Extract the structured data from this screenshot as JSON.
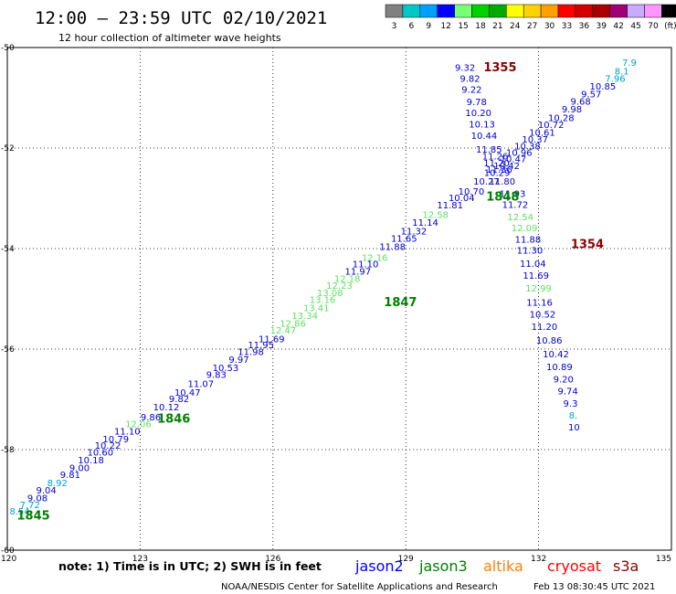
{
  "header": {
    "title": "12:00 – 23:59 UTC 02/10/2021",
    "subtitle": "12 hour collection of altimeter wave heights"
  },
  "colorbar": {
    "bins": [
      {
        "color": "#808080",
        "label": "3"
      },
      {
        "color": "#00c8c8",
        "label": "6"
      },
      {
        "color": "#00a0ff",
        "label": "9"
      },
      {
        "color": "#0000ff",
        "label": "12"
      },
      {
        "color": "#78ff78",
        "label": "15"
      },
      {
        "color": "#00d200",
        "label": "18"
      },
      {
        "color": "#00aa00",
        "label": "21"
      },
      {
        "color": "#ffff00",
        "label": "24"
      },
      {
        "color": "#ffd200",
        "label": "27"
      },
      {
        "color": "#ffa000",
        "label": "30"
      },
      {
        "color": "#ff0000",
        "label": "33"
      },
      {
        "color": "#d20000",
        "label": "36"
      },
      {
        "color": "#aa0000",
        "label": "39"
      },
      {
        "color": "#a00078",
        "label": "42"
      },
      {
        "color": "#c8aaff",
        "label": "45"
      },
      {
        "color": "#ff96ff",
        "label": "70"
      },
      {
        "color": "#000000",
        "label": "(ft)"
      }
    ]
  },
  "chart_data": {
    "type": "scatter",
    "title": "12:00 – 23:59 UTC 02/10/2021",
    "subtitle": "12 hour collection of altimeter wave heights",
    "xlim": [
      120,
      135
    ],
    "ylim": [
      -60,
      -50
    ],
    "x_ticks": [
      {
        "v": 120,
        "label": "120"
      },
      {
        "v": 123,
        "label": "123"
      },
      {
        "v": 126,
        "label": "126"
      },
      {
        "v": 129,
        "label": "129"
      },
      {
        "v": 132,
        "label": "132"
      },
      {
        "v": 135,
        "label": "135"
      }
    ],
    "y_ticks": [
      {
        "v": -50,
        "label": "-50"
      },
      {
        "v": -52,
        "label": "-52"
      },
      {
        "v": -54,
        "label": "-54"
      },
      {
        "v": -56,
        "label": "-56"
      },
      {
        "v": -58,
        "label": "-58"
      },
      {
        "v": -60,
        "label": "-60"
      }
    ],
    "grid": true,
    "value_colors": {
      "lt9": "#00a0d0",
      "lt12": "#0000cc",
      "lt15": "#60e060"
    },
    "points": [
      {
        "lon": 120.28,
        "lat": -59.23,
        "swh": "8.54"
      },
      {
        "lon": 120.51,
        "lat": -59.1,
        "swh": "7.72"
      },
      {
        "lon": 120.68,
        "lat": -58.96,
        "swh": "9.08"
      },
      {
        "lon": 120.88,
        "lat": -58.81,
        "swh": "9.04"
      },
      {
        "lon": 121.13,
        "lat": -58.66,
        "swh": "8.92"
      },
      {
        "lon": 121.42,
        "lat": -58.5,
        "swh": "9.81"
      },
      {
        "lon": 121.63,
        "lat": -58.36,
        "swh": "9.00"
      },
      {
        "lon": 121.89,
        "lat": -58.21,
        "swh": "10.18"
      },
      {
        "lon": 122.1,
        "lat": -58.05,
        "swh": "10.60"
      },
      {
        "lon": 122.27,
        "lat": -57.92,
        "swh": "10.22"
      },
      {
        "lon": 122.45,
        "lat": -57.79,
        "swh": "10.79"
      },
      {
        "lon": 122.71,
        "lat": -57.64,
        "swh": "11.10"
      },
      {
        "lon": 122.96,
        "lat": -57.49,
        "swh": "12.06"
      },
      {
        "lon": 123.24,
        "lat": -57.35,
        "swh": "9.86"
      },
      {
        "lon": 123.59,
        "lat": -57.15,
        "swh": "10.12"
      },
      {
        "lon": 123.88,
        "lat": -56.99,
        "swh": "9.82"
      },
      {
        "lon": 124.07,
        "lat": -56.86,
        "swh": "10.47"
      },
      {
        "lon": 124.37,
        "lat": -56.69,
        "swh": "11.07"
      },
      {
        "lon": 124.72,
        "lat": -56.51,
        "swh": "9.83"
      },
      {
        "lon": 124.93,
        "lat": -56.37,
        "swh": "10.53"
      },
      {
        "lon": 125.23,
        "lat": -56.21,
        "swh": "9.97"
      },
      {
        "lon": 125.5,
        "lat": -56.05,
        "swh": "11.98"
      },
      {
        "lon": 125.73,
        "lat": -55.92,
        "swh": "11.95"
      },
      {
        "lon": 125.97,
        "lat": -55.8,
        "swh": "11.69"
      },
      {
        "lon": 126.23,
        "lat": -55.63,
        "swh": "12.47"
      },
      {
        "lon": 126.45,
        "lat": -55.49,
        "swh": "12.86"
      },
      {
        "lon": 126.72,
        "lat": -55.34,
        "swh": "13.34"
      },
      {
        "lon": 126.98,
        "lat": -55.18,
        "swh": "13.41"
      },
      {
        "lon": 127.12,
        "lat": -55.02,
        "swh": "13.16"
      },
      {
        "lon": 127.29,
        "lat": -54.88,
        "swh": "13.08"
      },
      {
        "lon": 127.5,
        "lat": -54.74,
        "swh": "12.23"
      },
      {
        "lon": 127.68,
        "lat": -54.6,
        "swh": "12.18"
      },
      {
        "lon": 127.92,
        "lat": -54.45,
        "swh": "11.97"
      },
      {
        "lon": 128.09,
        "lat": -54.31,
        "swh": "11.10"
      },
      {
        "lon": 128.3,
        "lat": -54.18,
        "swh": "12.16"
      },
      {
        "lon": 128.7,
        "lat": -53.96,
        "swh": "11.88"
      },
      {
        "lon": 128.96,
        "lat": -53.8,
        "swh": "11.65"
      },
      {
        "lon": 129.18,
        "lat": -53.65,
        "swh": "11.32"
      },
      {
        "lon": 129.44,
        "lat": -53.48,
        "swh": "11.14"
      },
      {
        "lon": 129.67,
        "lat": -53.33,
        "swh": "12.58"
      },
      {
        "lon": 130.0,
        "lat": -53.14,
        "swh": "11.81"
      },
      {
        "lon": 130.26,
        "lat": -52.99,
        "swh": "10.04"
      },
      {
        "lon": 130.48,
        "lat": -52.86,
        "swh": "10.70"
      },
      {
        "lon": 130.82,
        "lat": -52.66,
        "swh": "10.27"
      },
      {
        "lon": 131.06,
        "lat": -52.49,
        "swh": "10.29"
      },
      {
        "lon": 131.28,
        "lat": -52.35,
        "swh": "10.42"
      },
      {
        "lon": 131.43,
        "lat": -52.22,
        "swh": "10.47"
      },
      {
        "lon": 131.56,
        "lat": -52.09,
        "swh": "10.96"
      },
      {
        "lon": 131.75,
        "lat": -51.96,
        "swh": "10.38"
      },
      {
        "lon": 131.92,
        "lat": -51.83,
        "swh": "10.37"
      },
      {
        "lon": 132.08,
        "lat": -51.69,
        "swh": "10.61"
      },
      {
        "lon": 132.28,
        "lat": -51.54,
        "swh": "10.72"
      },
      {
        "lon": 132.51,
        "lat": -51.4,
        "swh": "10.28"
      },
      {
        "lon": 132.75,
        "lat": -51.23,
        "swh": "9.98"
      },
      {
        "lon": 132.95,
        "lat": -51.07,
        "swh": "9.68"
      },
      {
        "lon": 133.19,
        "lat": -50.93,
        "swh": "9.57"
      },
      {
        "lon": 133.45,
        "lat": -50.77,
        "swh": "10.85"
      },
      {
        "lon": 133.73,
        "lat": -50.62,
        "swh": "7.96"
      },
      {
        "lon": 133.88,
        "lat": -50.47,
        "swh": "8.1"
      },
      {
        "lon": 134.05,
        "lat": -50.3,
        "swh": "7.9"
      },
      {
        "lon": 130.34,
        "lat": -50.4,
        "swh": "9.32"
      },
      {
        "lon": 130.45,
        "lat": -50.62,
        "swh": "9.82"
      },
      {
        "lon": 130.49,
        "lat": -50.84,
        "swh": "9.22"
      },
      {
        "lon": 130.6,
        "lat": -51.08,
        "swh": "9.78"
      },
      {
        "lon": 130.64,
        "lat": -51.3,
        "swh": "10.20"
      },
      {
        "lon": 130.72,
        "lat": -51.53,
        "swh": "10.13"
      },
      {
        "lon": 130.77,
        "lat": -51.75,
        "swh": "10.44"
      },
      {
        "lon": 130.88,
        "lat": -52.03,
        "swh": "11.85"
      },
      {
        "lon": 131.02,
        "lat": -52.16,
        "swh": "11.26"
      },
      {
        "lon": 131.05,
        "lat": -52.3,
        "swh": "11.20"
      },
      {
        "lon": 131.11,
        "lat": -52.43,
        "swh": "11.36"
      },
      {
        "lon": 131.18,
        "lat": -52.66,
        "swh": "11.80"
      },
      {
        "lon": 131.41,
        "lat": -52.91,
        "swh": "11.93"
      },
      {
        "lon": 131.47,
        "lat": -53.13,
        "swh": "11.72"
      },
      {
        "lon": 131.59,
        "lat": -53.37,
        "swh": "12.54"
      },
      {
        "lon": 131.68,
        "lat": -53.59,
        "swh": "12.09"
      },
      {
        "lon": 131.76,
        "lat": -53.82,
        "swh": "11.88"
      },
      {
        "lon": 131.8,
        "lat": -54.04,
        "swh": "11.30"
      },
      {
        "lon": 131.87,
        "lat": -54.3,
        "swh": "11.04"
      },
      {
        "lon": 131.94,
        "lat": -54.54,
        "swh": "11.69"
      },
      {
        "lon": 132.0,
        "lat": -54.79,
        "swh": "12.99"
      },
      {
        "lon": 132.02,
        "lat": -55.07,
        "swh": "11.16"
      },
      {
        "lon": 132.09,
        "lat": -55.31,
        "swh": "10.52"
      },
      {
        "lon": 132.13,
        "lat": -55.55,
        "swh": "11.20"
      },
      {
        "lon": 132.24,
        "lat": -55.83,
        "swh": "10.86"
      },
      {
        "lon": 132.39,
        "lat": -56.1,
        "swh": "10.42"
      },
      {
        "lon": 132.47,
        "lat": -56.35,
        "swh": "10.89"
      },
      {
        "lon": 132.56,
        "lat": -56.6,
        "swh": "9.20"
      },
      {
        "lon": 132.66,
        "lat": -56.84,
        "swh": "9.74"
      },
      {
        "lon": 132.72,
        "lat": -57.08,
        "swh": "9.3"
      },
      {
        "lon": 132.78,
        "lat": -57.32,
        "swh": "8."
      },
      {
        "lon": 132.8,
        "lat": -57.55,
        "swh": "10"
      }
    ],
    "pass_times": [
      {
        "lon": 120.59,
        "lat": -59.31,
        "label": "1845",
        "color": "#008000"
      },
      {
        "lon": 123.76,
        "lat": -57.38,
        "label": "1846",
        "color": "#008000"
      },
      {
        "lon": 128.88,
        "lat": -55.06,
        "label": "1847",
        "color": "#008000"
      },
      {
        "lon": 131.19,
        "lat": -52.96,
        "label": "1848",
        "color": "#008000"
      },
      {
        "lon": 131.13,
        "lat": -50.39,
        "label": "1355",
        "color": "#8b0000"
      },
      {
        "lon": 133.1,
        "lat": -53.91,
        "label": "1354",
        "color": "#8b0000"
      }
    ]
  },
  "footer": {
    "note": "note:  1) Time is in UTC;  2) SWH is in feet",
    "satellites": [
      {
        "name": "jason2",
        "color": "#0000ff"
      },
      {
        "name": "jason3",
        "color": "#008000"
      },
      {
        "name": "altika",
        "color": "#ff8000"
      },
      {
        "name": "cryosat",
        "color": "#ff0000"
      },
      {
        "name": "s3a",
        "color": "#8b0000"
      }
    ],
    "credit": "NOAA/NESDIS Center for Satellite Applications and Research",
    "timestamp": "Feb 13 08:30:45 UTC 2021"
  }
}
